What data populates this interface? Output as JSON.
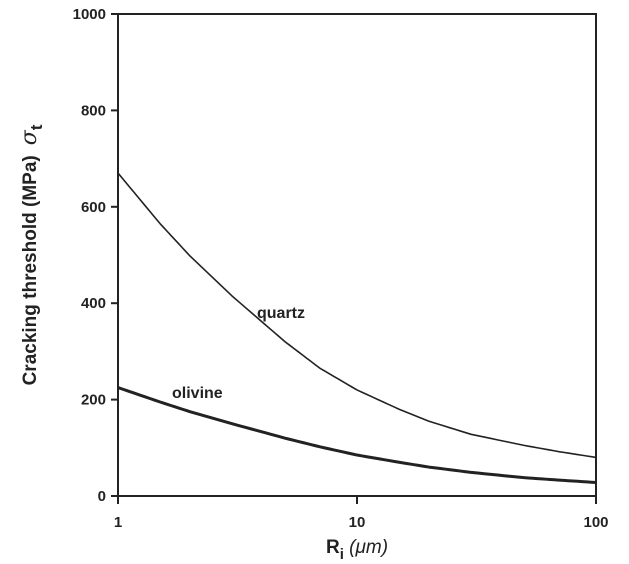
{
  "chart_data": {
    "type": "line",
    "xscale": "log",
    "xlim": [
      1,
      100
    ],
    "ylim": [
      0,
      1000
    ],
    "x_ticks": [
      "1",
      "10",
      "100"
    ],
    "y_ticks": [
      "0",
      "200",
      "400",
      "600",
      "800",
      "1000"
    ],
    "xlabel": {
      "main": "R",
      "sub": "i",
      "unit": " (μm)"
    },
    "ylabel": {
      "main": "Cracking threshold  (MPa)",
      "symbol": "σ",
      "sub": "t"
    },
    "grid": false,
    "series": [
      {
        "name": "quartz",
        "x": [
          1,
          1.5,
          2,
          3,
          5,
          7,
          10,
          15,
          20,
          30,
          50,
          70,
          100
        ],
        "y": [
          670,
          565,
          498,
          415,
          320,
          265,
          220,
          180,
          155,
          128,
          105,
          92,
          80
        ]
      },
      {
        "name": "olivine",
        "x": [
          1,
          1.5,
          2,
          3,
          5,
          7,
          10,
          15,
          20,
          30,
          50,
          70,
          100
        ],
        "y": [
          225,
          195,
          175,
          150,
          120,
          102,
          85,
          70,
          60,
          49,
          38,
          33,
          28
        ]
      }
    ]
  }
}
